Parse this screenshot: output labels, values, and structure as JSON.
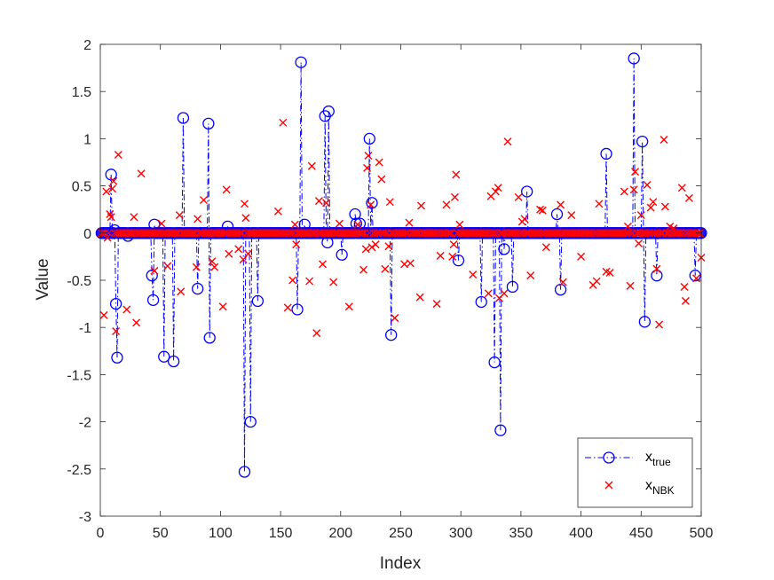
{
  "chart_data": {
    "type": "scatter",
    "title": "",
    "xlabel": "Index",
    "ylabel": "Value",
    "xlim": [
      0,
      500
    ],
    "ylim": [
      -3,
      2
    ],
    "xticks": [
      0,
      50,
      100,
      150,
      200,
      250,
      300,
      350,
      400,
      450,
      500
    ],
    "yticks": [
      -3,
      -2.5,
      -2,
      -1.5,
      -1,
      -0.5,
      0,
      0.5,
      1,
      1.5,
      2
    ],
    "xtick_labels": [
      "0",
      "50",
      "100",
      "150",
      "200",
      "250",
      "300",
      "350",
      "400",
      "450",
      "500"
    ],
    "ytick_labels": [
      "-3",
      "-2.5",
      "-2",
      "-1.5",
      "-1",
      "-0.5",
      "0",
      "0.5",
      "1",
      "1.5",
      "2"
    ],
    "grid": false,
    "legend_position": "bottom-right",
    "series": [
      {
        "name": "x",
        "name_subscript": "true",
        "style": "dash-dot line with circle markers",
        "color": "#0000ff",
        "n_points": 500,
        "nonzero": [
          [
            9,
            0.62
          ],
          [
            12,
            0.03
          ],
          [
            13,
            -0.75
          ],
          [
            14,
            -1.32
          ],
          [
            23,
            -0.03
          ],
          [
            43,
            -0.45
          ],
          [
            44,
            -0.71
          ],
          [
            45,
            0.09
          ],
          [
            53,
            -1.31
          ],
          [
            61,
            -1.36
          ],
          [
            69,
            1.22
          ],
          [
            81,
            -0.59
          ],
          [
            90,
            1.16
          ],
          [
            91,
            -1.11
          ],
          [
            106,
            0.07
          ],
          [
            120,
            -2.53
          ],
          [
            125,
            -2.0
          ],
          [
            131,
            -0.72
          ],
          [
            164,
            -0.81
          ],
          [
            167,
            1.81
          ],
          [
            170,
            0.09
          ],
          [
            187,
            1.24
          ],
          [
            189,
            -0.1
          ],
          [
            190,
            1.29
          ],
          [
            201,
            -0.23
          ],
          [
            212,
            0.2
          ],
          [
            213,
            0.1
          ],
          [
            216,
            0.1
          ],
          [
            224,
            1.0
          ],
          [
            226,
            0.32
          ],
          [
            242,
            -1.08
          ],
          [
            298,
            -0.29
          ],
          [
            317,
            -0.73
          ],
          [
            328,
            -1.37
          ],
          [
            333,
            -2.09
          ],
          [
            336,
            -0.17
          ],
          [
            343,
            -0.57
          ],
          [
            355,
            0.44
          ],
          [
            380,
            0.2
          ],
          [
            383,
            -0.6
          ],
          [
            421,
            0.84
          ],
          [
            444,
            1.85
          ],
          [
            451,
            0.97
          ],
          [
            453,
            -0.94
          ],
          [
            463,
            -0.45
          ],
          [
            495,
            -0.45
          ]
        ]
      },
      {
        "name": "x",
        "name_subscript": "NBK",
        "style": "x markers",
        "color": "#ff0000",
        "n_points": 500,
        "nonzero": [
          [
            3,
            -0.87
          ],
          [
            5,
            0.44
          ],
          [
            6,
            -0.05
          ],
          [
            8,
            0.2
          ],
          [
            9,
            0.17
          ],
          [
            10,
            0.47
          ],
          [
            11,
            0.55
          ],
          [
            13,
            -1.04
          ],
          [
            15,
            0.83
          ],
          [
            22,
            -0.81
          ],
          [
            28,
            0.17
          ],
          [
            30,
            -0.95
          ],
          [
            34,
            0.63
          ],
          [
            45,
            -0.4
          ],
          [
            51,
            0.1
          ],
          [
            56,
            -0.35
          ],
          [
            66,
            0.19
          ],
          [
            67,
            -0.62
          ],
          [
            80,
            -0.36
          ],
          [
            81,
            0.15
          ],
          [
            86,
            0.35
          ],
          [
            93,
            -0.3
          ],
          [
            95,
            -0.36
          ],
          [
            102,
            -0.78
          ],
          [
            105,
            0.46
          ],
          [
            107,
            -0.22
          ],
          [
            115,
            -0.17
          ],
          [
            119,
            -0.28
          ],
          [
            120,
            0.31
          ],
          [
            121,
            0.16
          ],
          [
            123,
            -0.22
          ],
          [
            148,
            0.23
          ],
          [
            152,
            1.17
          ],
          [
            156,
            -0.79
          ],
          [
            160,
            -0.5
          ],
          [
            162,
            0.09
          ],
          [
            163,
            -0.12
          ],
          [
            174,
            -0.51
          ],
          [
            176,
            0.71
          ],
          [
            180,
            -1.06
          ],
          [
            182,
            0.34
          ],
          [
            185,
            -0.33
          ],
          [
            188,
            0.32
          ],
          [
            194,
            -0.52
          ],
          [
            199,
            0.1
          ],
          [
            207,
            -0.78
          ],
          [
            214,
            0.09
          ],
          [
            219,
            -0.39
          ],
          [
            221,
            -0.17
          ],
          [
            222,
            0.69
          ],
          [
            223,
            0.82
          ],
          [
            225,
            0.3
          ],
          [
            226,
            -0.15
          ],
          [
            229,
            -0.12
          ],
          [
            232,
            0.75
          ],
          [
            234,
            0.57
          ],
          [
            237,
            -0.38
          ],
          [
            240,
            -0.14
          ],
          [
            241,
            0.33
          ],
          [
            245,
            0.38
          ],
          [
            245,
            -0.9
          ],
          [
            253,
            -0.33
          ],
          [
            257,
            0.11
          ],
          [
            258,
            -0.32
          ],
          [
            266,
            -0.68
          ],
          [
            267,
            0.29
          ],
          [
            280,
            -0.75
          ],
          [
            283,
            -0.24
          ],
          [
            288,
            0.3
          ],
          [
            293,
            -0.25
          ],
          [
            294,
            -0.12
          ],
          [
            295,
            0.38
          ],
          [
            296,
            0.62
          ],
          [
            299,
            0.09
          ],
          [
            310,
            -0.44
          ],
          [
            323,
            -0.64
          ],
          [
            325,
            0.39
          ],
          [
            329,
            0.44
          ],
          [
            331,
            0.48
          ],
          [
            332,
            -0.69
          ],
          [
            336,
            -0.64
          ],
          [
            339,
            0.97
          ],
          [
            348,
            0.38
          ],
          [
            351,
            0.12
          ],
          [
            353,
            0.15
          ],
          [
            358,
            -0.45
          ],
          [
            366,
            0.25
          ],
          [
            368,
            0.24
          ],
          [
            371,
            -0.15
          ],
          [
            383,
            0.3
          ],
          [
            385,
            -0.52
          ],
          [
            392,
            0.19
          ],
          [
            400,
            -0.25
          ],
          [
            410,
            -0.55
          ],
          [
            413,
            -0.51
          ],
          [
            415,
            0.31
          ],
          [
            421,
            -0.41
          ],
          [
            424,
            -0.42
          ],
          [
            436,
            0.44
          ],
          [
            439,
            0.07
          ],
          [
            441,
            -0.56
          ],
          [
            444,
            0.46
          ],
          [
            445,
            0.65
          ],
          [
            448,
            -0.11
          ],
          [
            450,
            0.19
          ],
          [
            455,
            0.51
          ],
          [
            458,
            0.27
          ],
          [
            460,
            0.33
          ],
          [
            463,
            -0.38
          ],
          [
            465,
            -0.97
          ],
          [
            469,
            0.99
          ],
          [
            470,
            0.28
          ],
          [
            474,
            0.07
          ],
          [
            477,
            0.05
          ],
          [
            484,
            0.48
          ],
          [
            486,
            -0.57
          ],
          [
            487,
            -0.72
          ],
          [
            490,
            0.37
          ],
          [
            496,
            -0.48
          ],
          [
            500,
            -0.26
          ]
        ]
      }
    ]
  }
}
